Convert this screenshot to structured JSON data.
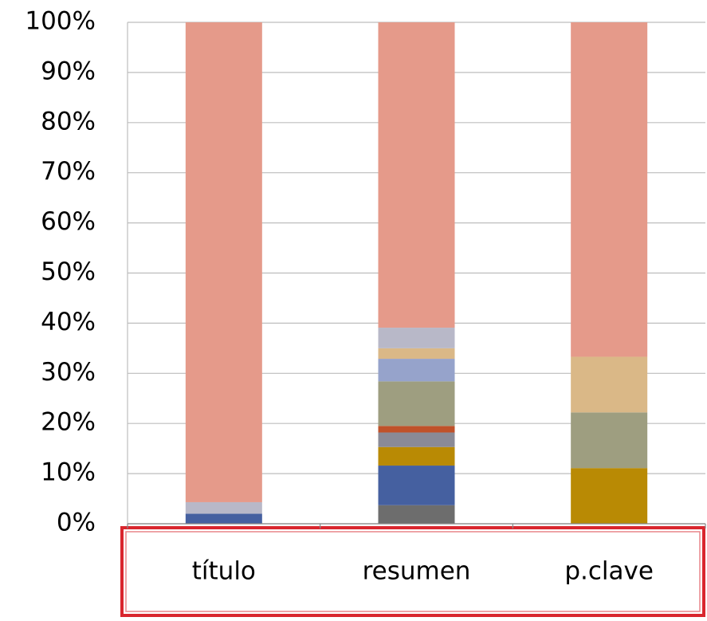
{
  "chart_data": {
    "type": "stacked_bar_100",
    "categories": [
      "título",
      "resumen",
      "p.clave"
    ],
    "series": [
      {
        "color": "#6d6d6d",
        "values": [
          0,
          3.7,
          0
        ]
      },
      {
        "color": "#4560a0",
        "values": [
          2,
          7.9,
          0
        ]
      },
      {
        "color": "#b98a04",
        "values": [
          0,
          3.7,
          11.1
        ]
      },
      {
        "color": "#8a8a96",
        "values": [
          0,
          2.9,
          0
        ]
      },
      {
        "color": "#c0522a",
        "values": [
          0,
          1.3,
          0
        ]
      },
      {
        "color": "#9e9e80",
        "values": [
          0,
          8.9,
          11.1
        ]
      },
      {
        "color": "#96a3cb",
        "values": [
          0,
          4.5,
          0
        ]
      },
      {
        "color": "#dab887",
        "values": [
          0,
          2.1,
          11.1
        ]
      },
      {
        "color": "#b8b8c8",
        "values": [
          2.3,
          4.1,
          0
        ]
      },
      {
        "color": "#e59a8a",
        "values": [
          95.7,
          60.9,
          66.7
        ]
      }
    ],
    "ylim": [
      0,
      100
    ],
    "yticks": [
      {
        "value": 0,
        "label": "0%"
      },
      {
        "value": 10,
        "label": "10%"
      },
      {
        "value": 20,
        "label": "20%"
      },
      {
        "value": 30,
        "label": "30%"
      },
      {
        "value": 40,
        "label": "40%"
      },
      {
        "value": 50,
        "label": "50%"
      },
      {
        "value": 60,
        "label": "60%"
      },
      {
        "value": 70,
        "label": "70%"
      },
      {
        "value": 80,
        "label": "80%"
      },
      {
        "value": 90,
        "label": "90%"
      },
      {
        "value": 100,
        "label": "100%"
      }
    ],
    "grid": true
  }
}
